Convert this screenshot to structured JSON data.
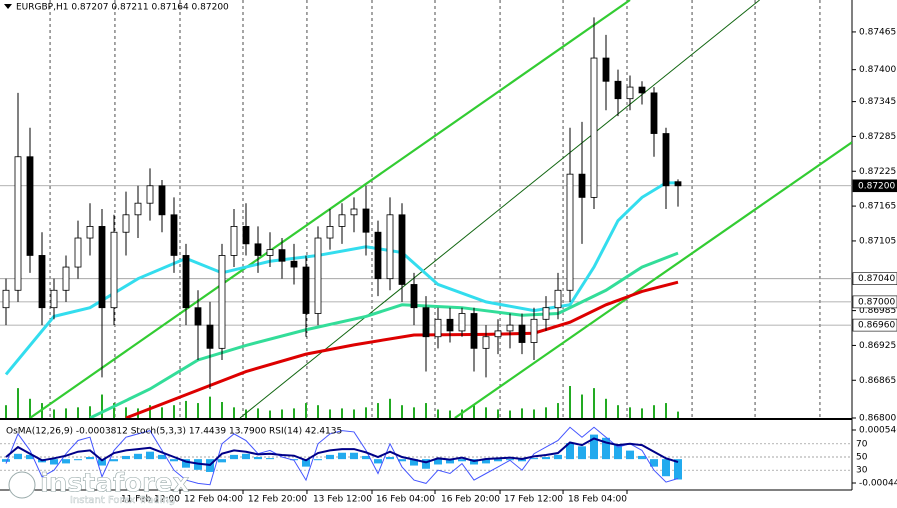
{
  "chart_data": [
    {
      "type": "candlestick",
      "title": "EURGBP,H1 0.87207 0.87211 0.87164 0.87200",
      "xlim": [
        -0.5,
        70.5
      ],
      "ylim": [
        0.868,
        0.8752
      ],
      "yticks": [
        0.87465,
        {
          "value": 0.874,
          "label": "0.87400"
        },
        0.87345,
        0.87285,
        0.87225,
        0.87165,
        0.87105,
        0.86985,
        0.86925,
        0.86865,
        {
          "value": 0.868,
          "label": "0.86800"
        }
      ],
      "levels": [
        {
          "value": 0.872,
          "label": "0.87200"
        },
        {
          "value": 0.8704,
          "label": "0.87040"
        },
        {
          "value": 0.87,
          "label": "0.87000"
        },
        {
          "value": 0.8696,
          "label": "0.86960"
        }
      ],
      "xgrid": [
        3.67,
        9.08,
        14.5,
        19.75,
        25.08,
        30.5,
        35.75,
        41.17,
        46.42,
        51.75,
        57.17,
        62.42,
        67.83
      ],
      "xticks": [
        {
          "value": 14.5,
          "label": "11 Feb 12:00"
        },
        {
          "value": 19.75,
          "label": "12 Feb 04:00"
        },
        {
          "value": 25.08,
          "label": "12 Feb 20:00"
        },
        {
          "value": 30.5,
          "label": "13 Feb 12:00"
        },
        {
          "value": 35.75,
          "label": "16 Feb 04:00"
        },
        {
          "value": 41.17,
          "label": "16 Feb 20:00"
        },
        {
          "value": 46.42,
          "label": "17 Feb 12:00"
        },
        {
          "value": 51.75,
          "label": "18 Feb 04:00"
        }
      ],
      "candles": [
        [
          0.8699,
          0.8704,
          0.8696,
          0.8702
        ],
        [
          0.8702,
          0.8736,
          0.87,
          0.8725
        ],
        [
          0.8725,
          0.873,
          0.8705,
          0.8708
        ],
        [
          0.8708,
          0.8712,
          0.8696,
          0.8699
        ],
        [
          0.8699,
          0.8704,
          0.8697,
          0.8702
        ],
        [
          0.8702,
          0.8708,
          0.87,
          0.8706
        ],
        [
          0.8706,
          0.8714,
          0.8704,
          0.8711
        ],
        [
          0.8711,
          0.8717,
          0.8708,
          0.8713
        ],
        [
          0.8713,
          0.8716,
          0.8687,
          0.8699
        ],
        [
          0.8699,
          0.8715,
          0.8696,
          0.8712
        ],
        [
          0.8712,
          0.8719,
          0.8708,
          0.8715
        ],
        [
          0.8715,
          0.872,
          0.8711,
          0.8717
        ],
        [
          0.8717,
          0.8723,
          0.8714,
          0.872
        ],
        [
          0.872,
          0.8721,
          0.8712,
          0.8715
        ],
        [
          0.8715,
          0.8718,
          0.8705,
          0.8708
        ],
        [
          0.8708,
          0.871,
          0.8696,
          0.8699
        ],
        [
          0.8699,
          0.8702,
          0.869,
          0.8696
        ],
        [
          0.8696,
          0.87,
          0.8685,
          0.8692
        ],
        [
          0.8692,
          0.871,
          0.869,
          0.8708
        ],
        [
          0.8708,
          0.8716,
          0.8706,
          0.8713
        ],
        [
          0.8713,
          0.8717,
          0.8708,
          0.871
        ],
        [
          0.871,
          0.8713,
          0.8705,
          0.8708
        ],
        [
          0.8708,
          0.8712,
          0.8706,
          0.8709
        ],
        [
          0.8709,
          0.8711,
          0.8704,
          0.8707
        ],
        [
          0.8707,
          0.871,
          0.8703,
          0.8706
        ],
        [
          0.8706,
          0.8708,
          0.8694,
          0.8698
        ],
        [
          0.8698,
          0.8713,
          0.8696,
          0.8711
        ],
        [
          0.8711,
          0.8716,
          0.8709,
          0.8713
        ],
        [
          0.8713,
          0.8717,
          0.871,
          0.8715
        ],
        [
          0.8715,
          0.8718,
          0.8712,
          0.8716
        ],
        [
          0.8716,
          0.872,
          0.8708,
          0.8712
        ],
        [
          0.8712,
          0.8714,
          0.8701,
          0.8704
        ],
        [
          0.8704,
          0.8718,
          0.8702,
          0.8715
        ],
        [
          0.8715,
          0.8717,
          0.87,
          0.8703
        ],
        [
          0.8703,
          0.8705,
          0.8696,
          0.8699
        ],
        [
          0.8699,
          0.8701,
          0.8688,
          0.8694
        ],
        [
          0.8694,
          0.8699,
          0.8692,
          0.8697
        ],
        [
          0.8697,
          0.8699,
          0.8693,
          0.8695
        ],
        [
          0.8695,
          0.8699,
          0.8694,
          0.8698
        ],
        [
          0.8698,
          0.8699,
          0.8688,
          0.8692
        ],
        [
          0.8692,
          0.8696,
          0.8687,
          0.8694
        ],
        [
          0.8694,
          0.8697,
          0.8691,
          0.8695
        ],
        [
          0.8695,
          0.8698,
          0.8692,
          0.8696
        ],
        [
          0.8696,
          0.8698,
          0.8691,
          0.8693
        ],
        [
          0.8693,
          0.8699,
          0.869,
          0.8697
        ],
        [
          0.8697,
          0.8701,
          0.8695,
          0.8699
        ],
        [
          0.8699,
          0.8705,
          0.8697,
          0.8702
        ],
        [
          0.8702,
          0.873,
          0.87,
          0.8722
        ],
        [
          0.8722,
          0.8731,
          0.871,
          0.8718
        ],
        [
          0.8718,
          0.8749,
          0.8716,
          0.8742
        ],
        [
          0.8742,
          0.8746,
          0.8733,
          0.8738
        ],
        [
          0.8738,
          0.874,
          0.8732,
          0.8735
        ],
        [
          0.8735,
          0.8739,
          0.8733,
          0.8737
        ],
        [
          0.8737,
          0.8738,
          0.8734,
          0.8736
        ],
        [
          0.8736,
          0.8737,
          0.8725,
          0.8729
        ],
        [
          0.8729,
          0.873,
          0.8716,
          0.872
        ],
        [
          0.87207,
          0.87211,
          0.87164,
          0.872
        ]
      ],
      "volume": [
        12,
        28,
        18,
        14,
        8,
        9,
        10,
        11,
        22,
        14,
        10,
        9,
        12,
        10,
        12,
        16,
        14,
        20,
        15,
        10,
        8,
        9,
        7,
        8,
        9,
        14,
        12,
        8,
        9,
        8,
        10,
        14,
        18,
        12,
        10,
        14,
        8,
        7,
        8,
        12,
        10,
        8,
        7,
        9,
        8,
        10,
        14,
        30,
        22,
        28,
        18,
        12,
        10,
        9,
        12,
        14,
        6
      ],
      "moving_averages": [
        {
          "color": "#33ddee",
          "x": [
            0,
            4,
            7,
            11,
            15,
            18,
            22,
            26,
            30,
            33,
            36,
            40,
            44,
            47,
            49,
            51,
            53,
            55,
            56
          ],
          "values": [
            0.86875,
            0.86975,
            0.8699,
            0.8704,
            0.87075,
            0.8705,
            0.8707,
            0.8708,
            0.87095,
            0.87085,
            0.8703,
            0.87,
            0.86985,
            0.86995,
            0.8706,
            0.8714,
            0.8718,
            0.87205,
            0.87205
          ]
        },
        {
          "color": "#33dd99",
          "x": [
            7,
            12,
            16,
            20,
            25,
            30,
            33,
            38,
            43,
            46,
            50,
            53,
            56
          ],
          "values": [
            0.868,
            0.8685,
            0.869,
            0.86925,
            0.86952,
            0.86975,
            0.86995,
            0.8699,
            0.86977,
            0.8698,
            0.8702,
            0.8706,
            0.87084
          ]
        },
        {
          "color": "#dd0000",
          "x": [
            10,
            15,
            20,
            25,
            29,
            34,
            40,
            44,
            47,
            50,
            53,
            56
          ],
          "values": [
            0.868,
            0.8684,
            0.8688,
            0.8691,
            0.86926,
            0.86943,
            0.86944,
            0.86946,
            0.86965,
            0.86995,
            0.87018,
            0.87034
          ]
        }
      ],
      "trend_lines": [
        {
          "color": "#33cc33",
          "x": [
            2,
            52
          ],
          "values": [
            0.868,
            0.8752
          ]
        },
        {
          "color": "#33cc33",
          "x": [
            37.4,
            70.5
          ],
          "values": [
            0.868,
            0.87275
          ]
        },
        {
          "color": "#116611",
          "x": [
            19.5,
            62.8
          ],
          "values": [
            0.868,
            0.8752
          ]
        }
      ]
    },
    {
      "type": "oscillator",
      "title": "OsMA(12,26,9) -0.0003812 Stoch(5,3,3) 17.4439 13.7900 RSI(14) 42.4135",
      "ylim": [
        -0.000447,
        0.000546
      ],
      "yticks": [
        {
          "value": 0.000546,
          "label": "0.000546"
        },
        {
          "value": -0.000447,
          "label": "-0.000447"
        }
      ],
      "y2lim": [
        0,
        100
      ],
      "y2ticks": [
        30,
        50,
        70
      ],
      "values": [
        -5e-05,
        0.0001,
        8e-05,
        -6e-05,
        -0.0001,
        -8e-05,
        -2e-05,
        4e-05,
        -0.00012,
        -4e-05,
        6e-05,
        0.0001,
        0.00014,
        8e-05,
        -4e-05,
        -0.00016,
        -0.0002,
        -0.00024,
        -6e-05,
        8e-05,
        0.0001,
        4e-05,
        2e-05,
        0,
        -2e-05,
        -0.00014,
        -2e-05,
        8e-05,
        0.00012,
        0.00012,
        6e-05,
        -8e-05,
        4e-05,
        -4e-05,
        -0.00012,
        -0.00018,
        -0.0001,
        -8e-05,
        -4e-05,
        -0.0001,
        -8e-05,
        -4e-05,
        -2e-05,
        -4e-05,
        2e-05,
        4e-05,
        8e-05,
        0.0003,
        0.00024,
        0.00046,
        0.0004,
        0.00028,
        0.00016,
        6e-05,
        -0.00014,
        -0.00032,
        -0.0003812
      ],
      "color": "#22aaee",
      "series": [
        {
          "color": "#4455ff",
          "axis": "y2",
          "values": [
            40,
            85,
            60,
            20,
            30,
            55,
            75,
            80,
            20,
            60,
            80,
            85,
            90,
            60,
            30,
            15,
            10,
            8,
            70,
            85,
            75,
            55,
            60,
            50,
            45,
            15,
            70,
            85,
            90,
            88,
            60,
            25,
            70,
            35,
            15,
            10,
            30,
            25,
            40,
            15,
            25,
            35,
            45,
            30,
            55,
            65,
            75,
            95,
            80,
            95,
            80,
            65,
            70,
            60,
            30,
            12,
            17.4439
          ]
        },
        {
          "color": "#000088",
          "axis": "y2",
          "values": [
            50,
            65,
            55,
            45,
            48,
            52,
            58,
            60,
            45,
            56,
            60,
            62,
            64,
            57,
            50,
            43,
            40,
            38,
            55,
            60,
            58,
            54,
            55,
            53,
            52,
            45,
            56,
            60,
            62,
            62,
            57,
            50,
            58,
            50,
            46,
            42,
            48,
            46,
            49,
            44,
            47,
            48,
            49,
            47,
            51,
            53,
            56,
            72,
            68,
            78,
            72,
            68,
            70,
            68,
            58,
            48,
            42.4135
          ]
        }
      ]
    }
  ],
  "logo": {
    "brand": "instaforex",
    "tagline": "Instant Forex Trading"
  }
}
